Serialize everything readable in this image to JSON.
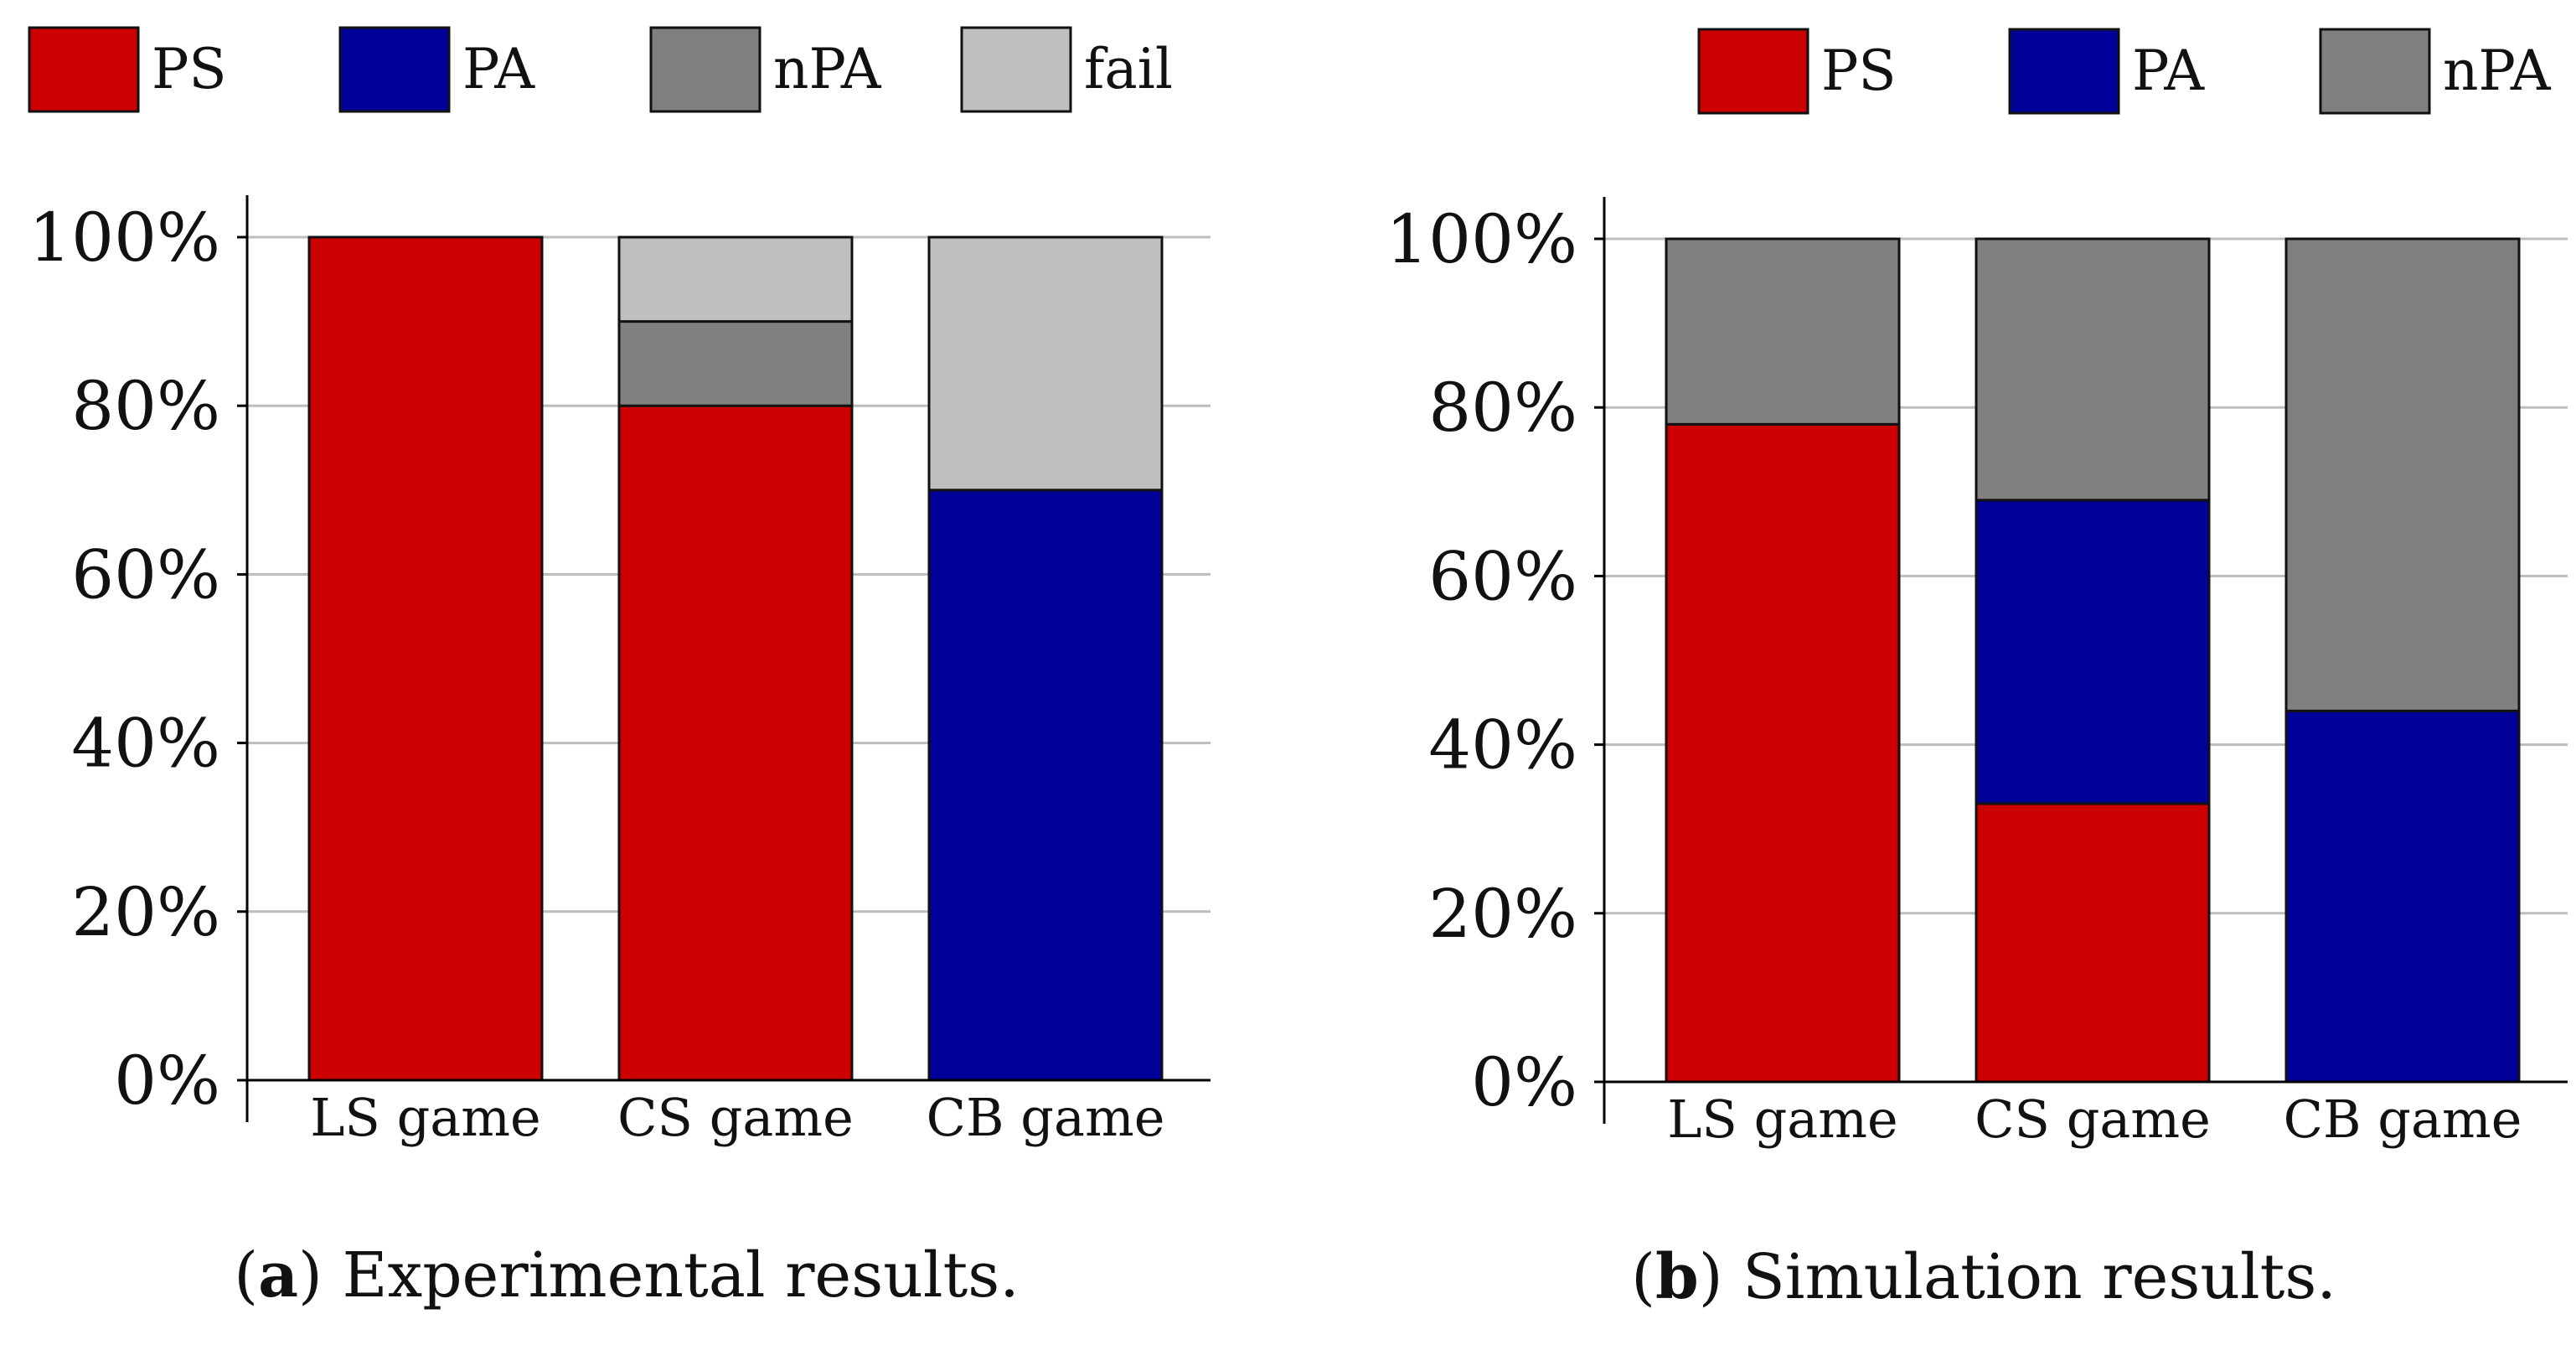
{
  "chart_data": [
    {
      "type": "bar",
      "stacked": true,
      "caption_label": "a",
      "caption_text": "Experimental results.",
      "categories": [
        "LS game",
        "CS game",
        "CB game"
      ],
      "ylim": [
        0,
        100
      ],
      "yticks": [
        "0%",
        "20%",
        "40%",
        "60%",
        "80%",
        "100%"
      ],
      "grid": true,
      "legend_position": "top",
      "series": [
        {
          "name": "PS",
          "color": "#cc0000",
          "values": [
            100,
            80,
            0
          ]
        },
        {
          "name": "PA",
          "color": "#000099",
          "values": [
            0,
            0,
            70
          ]
        },
        {
          "name": "nPA",
          "color": "#808080",
          "values": [
            0,
            10,
            0
          ]
        },
        {
          "name": "fail",
          "color": "#bfbfbf",
          "values": [
            0,
            10,
            30
          ]
        }
      ]
    },
    {
      "type": "bar",
      "stacked": true,
      "caption_label": "b",
      "caption_text": "Simulation results.",
      "categories": [
        "LS game",
        "CS game",
        "CB game"
      ],
      "ylim": [
        0,
        100
      ],
      "yticks": [
        "0%",
        "20%",
        "40%",
        "60%",
        "80%",
        "100%"
      ],
      "grid": true,
      "legend_position": "top",
      "series": [
        {
          "name": "PS",
          "color": "#cc0000",
          "values": [
            78,
            33,
            0
          ]
        },
        {
          "name": "PA",
          "color": "#000099",
          "values": [
            0,
            36,
            44
          ]
        },
        {
          "name": "nPA",
          "color": "#808080",
          "values": [
            22,
            31,
            56
          ]
        }
      ]
    }
  ]
}
